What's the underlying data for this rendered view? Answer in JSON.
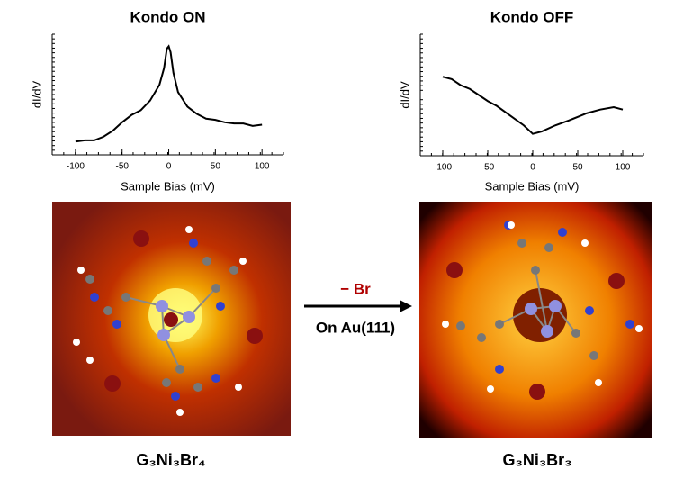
{
  "chart_data": [
    {
      "type": "line",
      "title": "Kondo ON",
      "xlabel": "Sample Bias (mV)",
      "ylabel": "dI/dV",
      "x": [
        -100,
        -90,
        -80,
        -70,
        -60,
        -50,
        -40,
        -30,
        -20,
        -10,
        -5,
        -2,
        0,
        2,
        5,
        10,
        20,
        30,
        40,
        50,
        60,
        70,
        80,
        90,
        100
      ],
      "series": [
        {
          "color": "#000000",
          "values": [
            0.11,
            0.12,
            0.12,
            0.15,
            0.2,
            0.27,
            0.33,
            0.37,
            0.45,
            0.58,
            0.72,
            0.88,
            0.9,
            0.85,
            0.68,
            0.52,
            0.4,
            0.34,
            0.3,
            0.29,
            0.27,
            0.26,
            0.26,
            0.24,
            0.25
          ]
        }
      ],
      "xlim": [
        -125,
        123
      ],
      "ylim": [
        0,
        1
      ],
      "xticks": [
        -100,
        -50,
        0,
        50,
        100
      ]
    },
    {
      "type": "line",
      "title": "Kondo OFF",
      "xlabel": "Sample Bias (mV)",
      "ylabel": "dI/dV",
      "x": [
        -100,
        -90,
        -80,
        -70,
        -60,
        -50,
        -40,
        -25,
        -10,
        0,
        10,
        25,
        40,
        50,
        60,
        75,
        90,
        100
      ],
      "series": [
        {
          "color": "#000000",
          "values": [
            0.65,
            0.63,
            0.58,
            0.55,
            0.5,
            0.45,
            0.41,
            0.33,
            0.25,
            0.18,
            0.2,
            0.25,
            0.29,
            0.32,
            0.35,
            0.38,
            0.4,
            0.38
          ]
        }
      ],
      "xlim": [
        -125,
        123
      ],
      "ylim": [
        0,
        1
      ],
      "xticks": [
        -100,
        -50,
        0,
        50,
        100
      ]
    }
  ],
  "arrow": {
    "top": "− Br",
    "bottom": "On Au(111)"
  },
  "captions": [
    "G₃Ni₃Br₄",
    "G₃Ni₃Br₃"
  ]
}
